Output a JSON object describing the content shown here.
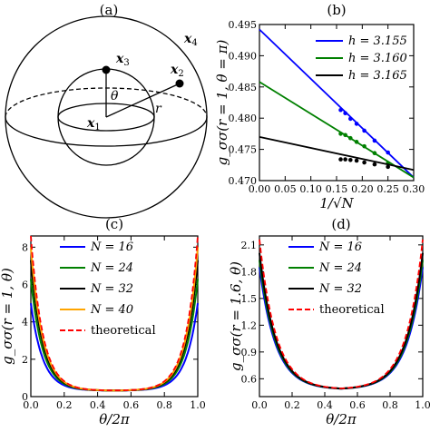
{
  "panel_a": {
    "tag": "(a)",
    "points": [
      "x1",
      "x2",
      "x3",
      "x4"
    ],
    "point_labels": {
      "x1": "x",
      "x2": "x",
      "x3": "x",
      "x4": "x"
    },
    "point_subs": {
      "x1": "1",
      "x2": "2",
      "x3": "3",
      "x4": "4"
    },
    "theta_label": "θ",
    "r_label": "r"
  },
  "chart_data": [
    {
      "panel": "(b)",
      "type": "scatter",
      "xlabel": "1/√N",
      "ylabel": "g_σσ(r = 1, θ = π)",
      "xlim": [
        0.0,
        0.3
      ],
      "ylim": [
        0.47,
        0.495
      ],
      "xticks": [
        "0.00",
        "0.05",
        "0.10",
        "0.15",
        "0.20",
        "0.25",
        "0.30"
      ],
      "yticks": [
        "0.470",
        "0.475",
        "0.480",
        "0.485",
        "0.490",
        "0.495"
      ],
      "legend_position": "top-right",
      "series": [
        {
          "name": "h = 3.155",
          "color": "#0000ff",
          "fit": {
            "x": [
              0.0,
              0.3
            ],
            "y": [
              0.4942,
              0.4705
            ]
          },
          "x": [
            0.158,
            0.167,
            0.177,
            0.189,
            0.204,
            0.224,
            0.25
          ],
          "y": [
            0.4813,
            0.4808,
            0.4799,
            0.4791,
            0.478,
            0.4764,
            0.4745
          ]
        },
        {
          "name": "h = 3.160",
          "color": "#008000",
          "fit": {
            "x": [
              0.0,
              0.3
            ],
            "y": [
              0.4858,
              0.4705
            ]
          },
          "x": [
            0.158,
            0.167,
            0.177,
            0.189,
            0.204,
            0.224,
            0.25
          ],
          "y": [
            0.4775,
            0.4773,
            0.4768,
            0.4762,
            0.4755,
            0.4744,
            0.4728
          ]
        },
        {
          "name": "h = 3.165",
          "color": "#000000",
          "fit": {
            "x": [
              0.0,
              0.3
            ],
            "y": [
              0.477,
              0.4717
            ]
          },
          "x": [
            0.158,
            0.167,
            0.177,
            0.189,
            0.204,
            0.224,
            0.25
          ],
          "y": [
            0.4734,
            0.4734,
            0.4733,
            0.4732,
            0.4729,
            0.4726,
            0.4722
          ]
        }
      ]
    },
    {
      "panel": "(c)",
      "type": "line",
      "xlabel": "θ/2π",
      "ylabel": "g_σσ(r = 1, θ)",
      "xlim": [
        0.0,
        1.0
      ],
      "ylim": [
        0.0,
        8.6
      ],
      "xticks": [
        "0.0",
        "0.2",
        "0.4",
        "0.6",
        "0.8",
        "1.0"
      ],
      "yticks": [
        "0",
        "2",
        "4",
        "6",
        "8"
      ],
      "legend_position": "top-center",
      "series": [
        {
          "name": "N = 16",
          "color": "#0000ff",
          "peak": 5.0,
          "dashed": false
        },
        {
          "name": "N = 24",
          "color": "#008000",
          "peak": 6.3,
          "dashed": false
        },
        {
          "name": "N = 32",
          "color": "#000000",
          "peak": 7.3,
          "dashed": false
        },
        {
          "name": "N = 40",
          "color": "#ffa500",
          "peak": 8.0,
          "dashed": false
        },
        {
          "name": "theoretical",
          "color": "#ff0000",
          "peak": 8.6,
          "dashed": true
        }
      ],
      "min_value": 0.32
    },
    {
      "panel": "(d)",
      "type": "line",
      "xlabel": "θ/2π",
      "ylabel": "g_σσ(r = 1.6, θ)",
      "xlim": [
        0.0,
        1.0
      ],
      "ylim": [
        0.4,
        2.2
      ],
      "xticks": [
        "0.0",
        "0.2",
        "0.4",
        "0.6",
        "0.8",
        "1.0"
      ],
      "yticks": [
        "0.6",
        "0.9",
        "1.2",
        "1.5",
        "1.8",
        "2.1"
      ],
      "legend_position": "top-center",
      "series": [
        {
          "name": "N = 16",
          "color": "#0000ff",
          "peak": 1.85,
          "dashed": false
        },
        {
          "name": "N = 24",
          "color": "#008000",
          "peak": 1.93,
          "dashed": false
        },
        {
          "name": "N = 32",
          "color": "#000000",
          "peak": 2.01,
          "dashed": false
        },
        {
          "name": "theoretical",
          "color": "#ff0000",
          "peak": 2.16,
          "dashed": true
        }
      ],
      "min_value": 0.48
    }
  ]
}
